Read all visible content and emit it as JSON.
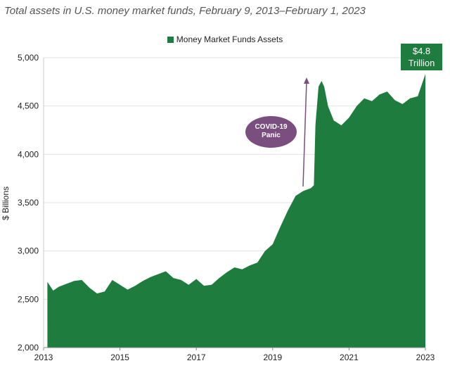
{
  "chart_data": {
    "type": "area",
    "title": "Total assets in U.S. money market funds, February 9, 2013–February 1, 2023",
    "ylabel": "$ Billions",
    "xlabel": "",
    "ylim": [
      2000,
      5000
    ],
    "xlim": [
      2013,
      2023
    ],
    "y_ticks": [
      "2,000",
      "2,500",
      "3,000",
      "3,500",
      "4,000",
      "4,500",
      "5,000"
    ],
    "x_ticks": [
      "2013",
      "2015",
      "2017",
      "2019",
      "2021",
      "2023"
    ],
    "grid": "horizontal",
    "legend_position": "top-center",
    "series": [
      {
        "name": "Money Market Funds Assets",
        "color": "#1e7d3e",
        "x": [
          2013.1,
          2013.25,
          2013.4,
          2013.6,
          2013.8,
          2014.0,
          2014.2,
          2014.4,
          2014.6,
          2014.8,
          2015.0,
          2015.2,
          2015.4,
          2015.6,
          2015.8,
          2016.0,
          2016.2,
          2016.4,
          2016.6,
          2016.8,
          2017.0,
          2017.2,
          2017.4,
          2017.6,
          2017.8,
          2018.0,
          2018.2,
          2018.4,
          2018.6,
          2018.8,
          2019.0,
          2019.2,
          2019.4,
          2019.6,
          2019.8,
          2020.0,
          2020.08,
          2020.12,
          2020.2,
          2020.28,
          2020.35,
          2020.45,
          2020.6,
          2020.8,
          2021.0,
          2021.2,
          2021.4,
          2021.6,
          2021.8,
          2022.0,
          2022.2,
          2022.4,
          2022.6,
          2022.8,
          2023.0
        ],
        "values": [
          2680,
          2590,
          2630,
          2660,
          2690,
          2700,
          2620,
          2560,
          2580,
          2700,
          2650,
          2600,
          2640,
          2690,
          2730,
          2760,
          2790,
          2720,
          2700,
          2650,
          2710,
          2640,
          2650,
          2720,
          2780,
          2830,
          2810,
          2850,
          2880,
          3000,
          3070,
          3250,
          3420,
          3570,
          3620,
          3650,
          3680,
          4300,
          4700,
          4760,
          4700,
          4500,
          4350,
          4300,
          4380,
          4500,
          4580,
          4550,
          4620,
          4650,
          4560,
          4520,
          4580,
          4600,
          4830
        ]
      }
    ],
    "annotations": [
      {
        "text_line1": "$4.8",
        "text_line2": "Trillion",
        "color": "#1e7d3e"
      },
      {
        "text_line1": "COVID-19",
        "text_line2": "Panic",
        "color": "#7a4f7f"
      }
    ]
  }
}
